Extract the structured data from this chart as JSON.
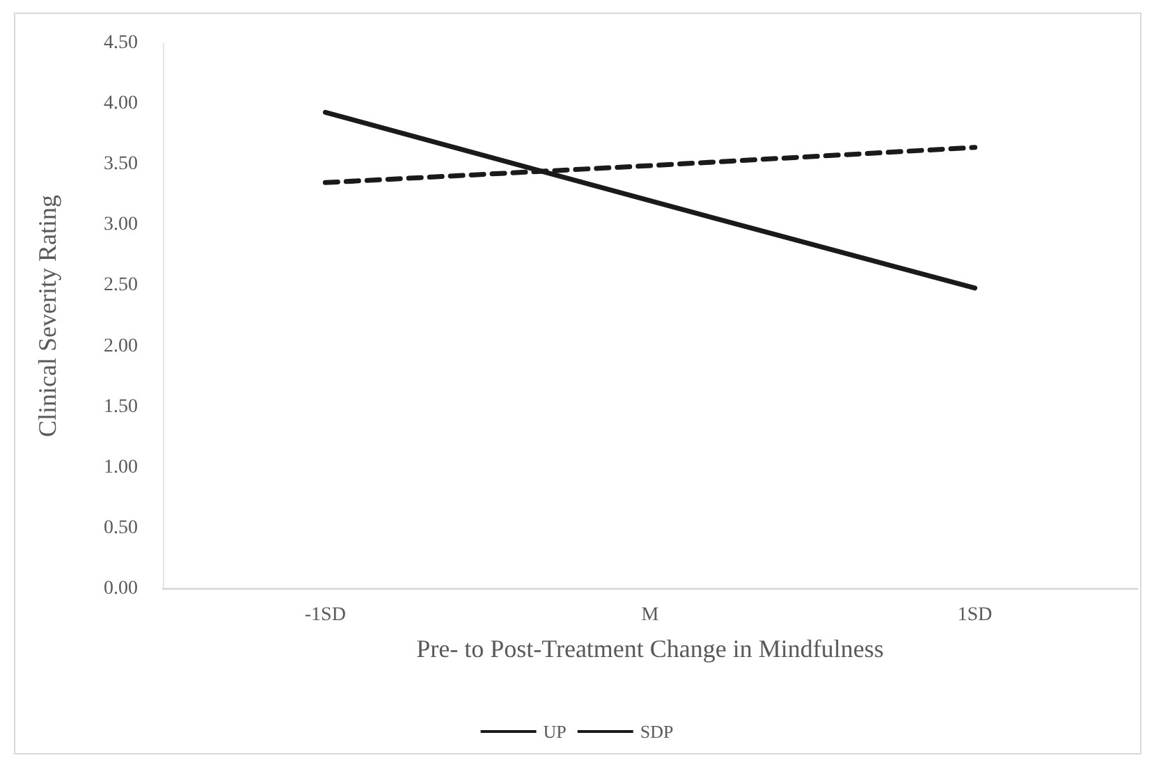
{
  "chart_data": {
    "type": "line",
    "xlabel": "Pre- to Post-Treatment Change in Mindfulness",
    "ylabel": "Clinical Severity Rating",
    "categories": [
      "-1SD",
      "M",
      "1SD"
    ],
    "series": [
      {
        "name": "UP",
        "color": "#1a1a1a",
        "values": [
          3.93,
          3.2,
          2.48
        ],
        "line_style": "solid"
      },
      {
        "name": "SDP",
        "color": "#1a1a1a",
        "values": [
          3.35,
          3.49,
          3.64
        ],
        "line_style": "dashed"
      }
    ],
    "ylim": [
      0,
      4.5
    ],
    "yticks": [
      {
        "value": 0,
        "label": "0.00"
      },
      {
        "value": 0.5,
        "label": "0.50"
      },
      {
        "value": 1,
        "label": "1.00"
      },
      {
        "value": 1.5,
        "label": "1.50"
      },
      {
        "value": 2,
        "label": "2.00"
      },
      {
        "value": 2.5,
        "label": "2.50"
      },
      {
        "value": 3,
        "label": "3.00"
      },
      {
        "value": 3.5,
        "label": "3.50"
      },
      {
        "value": 4,
        "label": "4.00"
      },
      {
        "value": 4.5,
        "label": "4.50"
      }
    ],
    "grid": false,
    "legend": "bottom",
    "marker": "none"
  }
}
